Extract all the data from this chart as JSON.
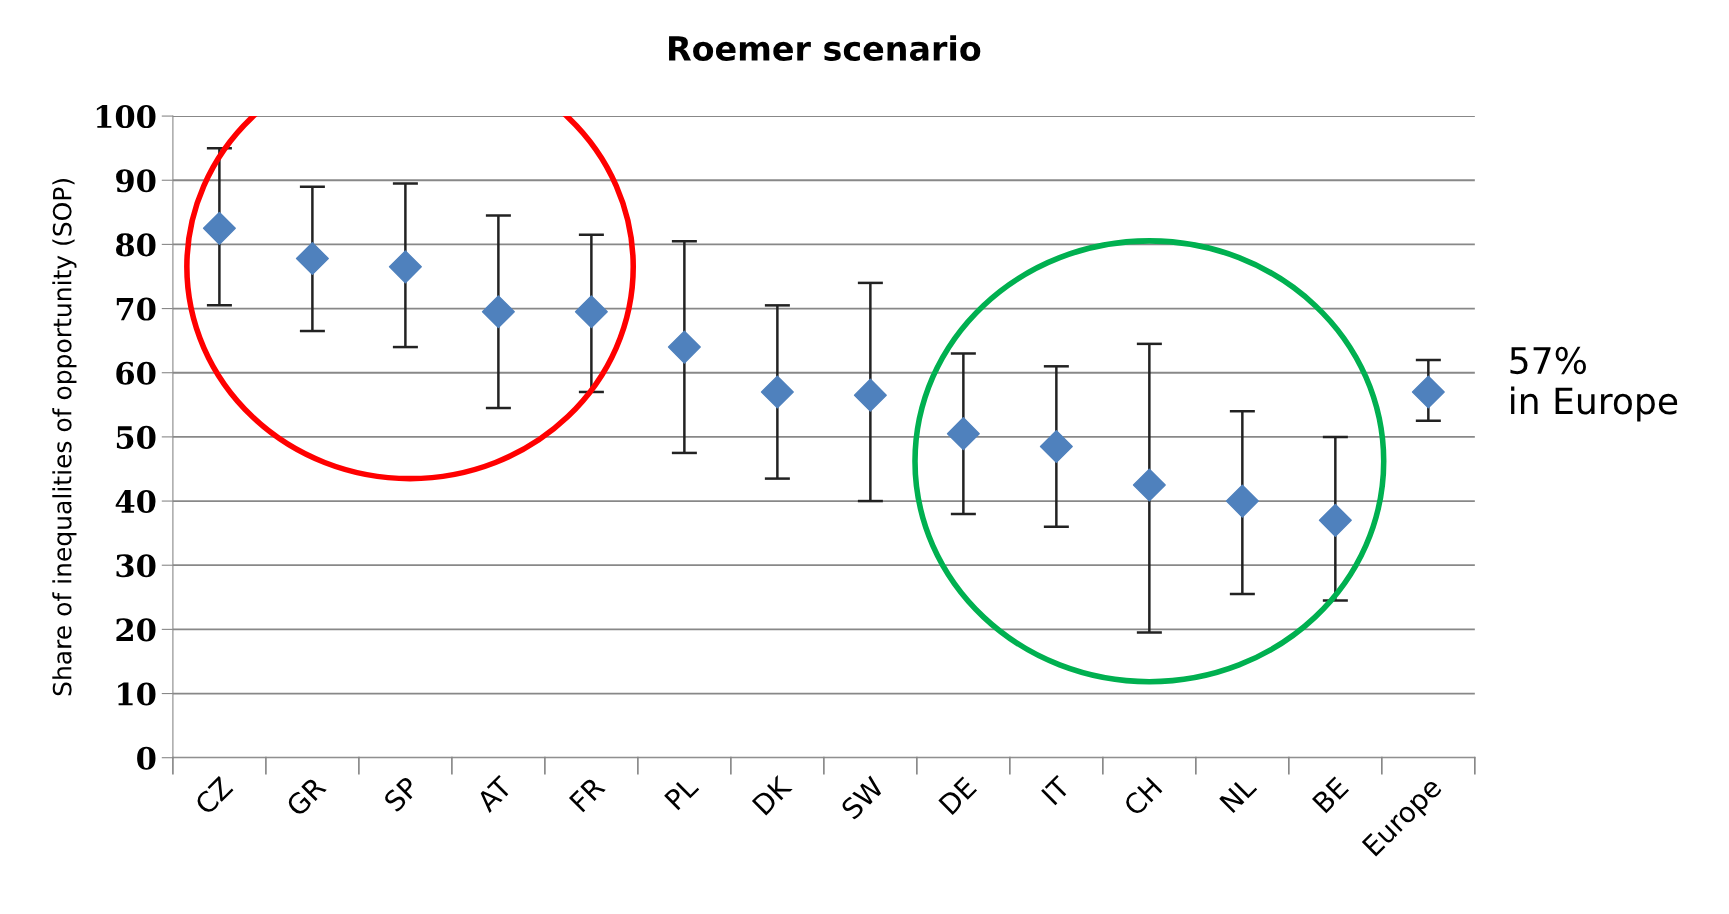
{
  "chart_data": {
    "type": "scatter",
    "title": "Roemer scenario",
    "ylabel": "Share of inequalities of opportunity (SOP)",
    "categories": [
      "CZ",
      "GR",
      "SP",
      "AT",
      "FR",
      "PL",
      "DK",
      "SW",
      "DE",
      "IT",
      "CH",
      "NL",
      "BE",
      "Europe"
    ],
    "series": [
      {
        "color": "#4f81bd",
        "values": [
          82.5,
          77.8,
          76.5,
          69.5,
          69.5,
          64,
          57,
          56.5,
          50.5,
          48.5,
          42.5,
          40,
          37,
          57
        ],
        "errors": [
          [
            70.5,
            95
          ],
          [
            66.5,
            89
          ],
          [
            64,
            89.5
          ],
          [
            54.5,
            84.5
          ],
          [
            57,
            81.5
          ],
          [
            47.5,
            80.5
          ],
          [
            43.5,
            70.5
          ],
          [
            40,
            74
          ],
          [
            38,
            63
          ],
          [
            36,
            61
          ],
          [
            19.5,
            64.5
          ],
          [
            25.5,
            54
          ],
          [
            24.5,
            50
          ],
          [
            52.5,
            62
          ]
        ]
      }
    ],
    "ylim": [
      0,
      100
    ],
    "yticks": [
      0,
      10,
      20,
      30,
      40,
      50,
      60,
      70,
      80,
      90,
      100
    ],
    "grid": "y",
    "marker": "diamond",
    "legend": false,
    "annotations": [
      "57%\nin Europe"
    ]
  }
}
